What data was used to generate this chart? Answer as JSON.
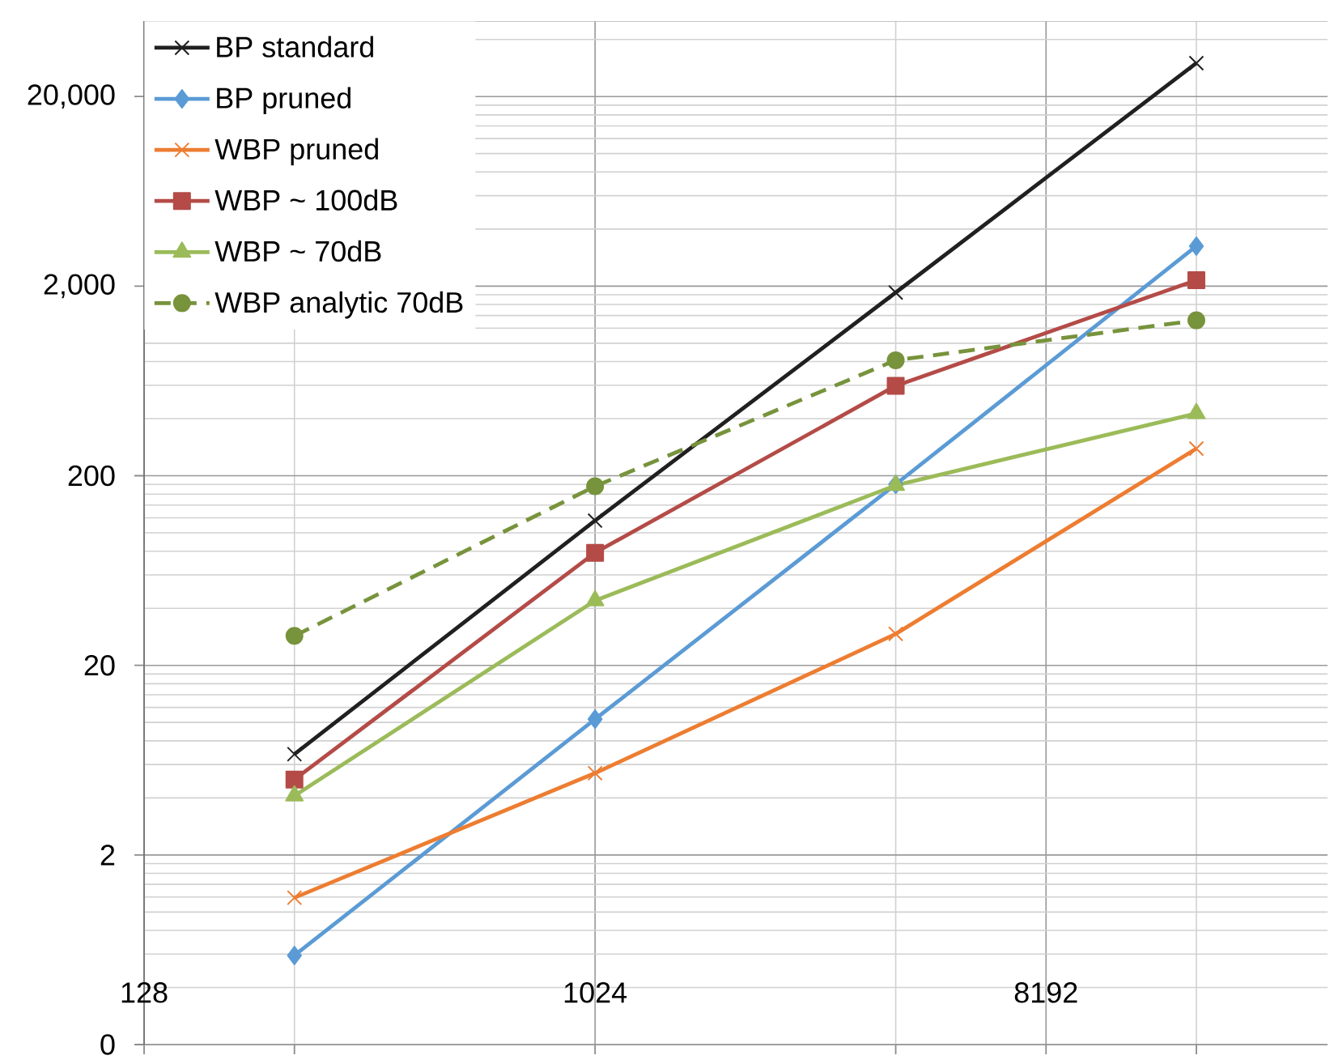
{
  "chart_data": {
    "type": "line",
    "x": [
      256,
      1024,
      4096,
      16384
    ],
    "series": [
      {
        "name": "BP standard",
        "color": "#202020",
        "marker": "cross",
        "values": [
          6.8,
          116,
          1850,
          30000
        ]
      },
      {
        "name": "BP pruned",
        "color": "#5b9bd5",
        "marker": "diamond",
        "values": [
          0.59,
          10.4,
          180,
          3250
        ]
      },
      {
        "name": "WBP pruned",
        "color": "#ed7d31",
        "marker": "cross",
        "values": [
          1.19,
          5.4,
          29.3,
          278
        ]
      },
      {
        "name": "WBP ~ 100dB",
        "color": "#b44b47",
        "marker": "square",
        "values": [
          5.0,
          78.5,
          596,
          2150
        ]
      },
      {
        "name": "WBP ~ 70dB",
        "color": "#9bbb59",
        "marker": "triangle",
        "values": [
          4.1,
          43.9,
          178,
          426
        ]
      },
      {
        "name": "WBP analytic 70dB",
        "color": "#77933c",
        "marker": "circle",
        "line_style": "dashed",
        "values": [
          28.6,
          176,
          813,
          1320
        ]
      }
    ],
    "log": "xy",
    "xlim": [
      128,
      30000
    ],
    "ylim": [
      0.2,
      50000
    ],
    "xticks": [
      128,
      {
        "value": 256,
        "label": null
      },
      1024,
      {
        "value": 4096,
        "label": null
      },
      8192,
      {
        "value": 16384,
        "label": null
      }
    ],
    "yticks": [
      {
        "value": 0.2,
        "label": "0"
      },
      {
        "value": 0.4,
        "label": null
      },
      {
        "value": 0.6,
        "label": null
      },
      {
        "value": 0.8,
        "label": null
      },
      {
        "value": 1,
        "label": null
      },
      {
        "value": 1.2,
        "label": null
      },
      {
        "value": 1.4,
        "label": null
      },
      {
        "value": 1.6,
        "label": null
      },
      {
        "value": 1.8,
        "label": null
      },
      2,
      {
        "value": 4,
        "label": null
      },
      {
        "value": 6,
        "label": null
      },
      {
        "value": 8,
        "label": null
      },
      {
        "value": 10,
        "label": null
      },
      {
        "value": 12,
        "label": null
      },
      {
        "value": 14,
        "label": null
      },
      {
        "value": 16,
        "label": null
      },
      {
        "value": 18,
        "label": null
      },
      20,
      {
        "value": 40,
        "label": null
      },
      {
        "value": 60,
        "label": null
      },
      {
        "value": 80,
        "label": null
      },
      {
        "value": 100,
        "label": null
      },
      {
        "value": 120,
        "label": null
      },
      {
        "value": 140,
        "label": null
      },
      {
        "value": 160,
        "label": null
      },
      {
        "value": 180,
        "label": null
      },
      200,
      {
        "value": 400,
        "label": null
      },
      {
        "value": 600,
        "label": null
      },
      {
        "value": 800,
        "label": null
      },
      {
        "value": 1000,
        "label": null
      },
      {
        "value": 1200,
        "label": null
      },
      {
        "value": 1400,
        "label": null
      },
      {
        "value": 1600,
        "label": null
      },
      {
        "value": 1800,
        "label": null
      },
      {
        "value": 2000,
        "label": "2,000"
      },
      {
        "value": 4000,
        "label": null
      },
      {
        "value": 6000,
        "label": null
      },
      {
        "value": 8000,
        "label": null
      },
      {
        "value": 10000,
        "label": null
      },
      {
        "value": 12000,
        "label": null
      },
      {
        "value": 14000,
        "label": null
      },
      {
        "value": 16000,
        "label": null
      },
      {
        "value": 18000,
        "label": null
      },
      {
        "value": 20000,
        "label": "20,000"
      },
      {
        "value": 40000,
        "label": null
      }
    ],
    "grid": true,
    "legend": "top left"
  }
}
